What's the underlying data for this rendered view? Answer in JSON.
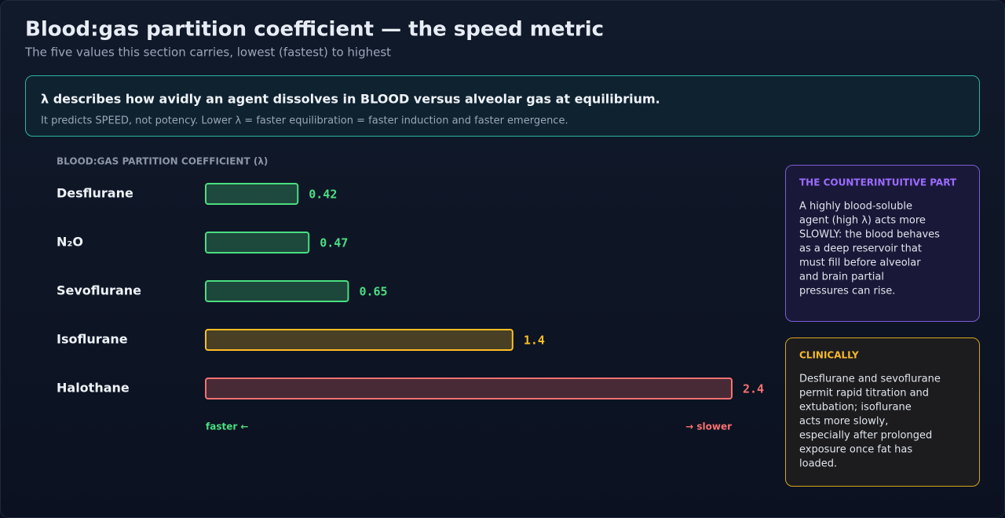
{
  "header": {
    "title": "Blood:gas partition coefficient — the speed metric",
    "subtitle": "The five values this section carries, lowest (fastest) to highest"
  },
  "callout": {
    "heading": "λ describes how avidly an agent dissolves in BLOOD versus alveolar gas at equilibrium.",
    "text": "It predicts SPEED, not potency. Lower λ = faster equilibration = faster induction and faster emergence."
  },
  "chart_data": {
    "type": "hbar",
    "axis_label": "BLOOD:GAS PARTITION COEFFICIENT (λ)",
    "categories": [
      "Desflurane",
      "N₂O",
      "Sevoflurane",
      "Isoflurane",
      "Halothane"
    ],
    "values": [
      0.42,
      0.47,
      0.65,
      1.4,
      2.4
    ],
    "colors": [
      "#4ade80",
      "#4ade80",
      "#4ade80",
      "#fbbf24",
      "#f87171"
    ],
    "xlim": [
      0,
      2.4
    ],
    "annotations": [
      {
        "text": "faster ←",
        "color": "#4ade80"
      },
      {
        "text": "→ slower",
        "color": "#f87171"
      }
    ]
  },
  "cards": [
    {
      "title": "THE COUNTERINTUITIVE PART",
      "lines": [
        "A highly blood-soluble",
        "agent (high λ) acts more",
        "SLOWLY: the blood behaves",
        "as a deep reservoir that",
        "must fill before alveolar",
        "and brain partial",
        "pressures can rise."
      ]
    },
    {
      "title": "CLINICALLY",
      "lines": [
        "Desflurane and sevoflurane",
        "permit rapid titration and",
        "extubation; isoflurane",
        "acts more slowly,",
        "especially after prolonged",
        "exposure once fat has",
        "loaded."
      ]
    }
  ]
}
